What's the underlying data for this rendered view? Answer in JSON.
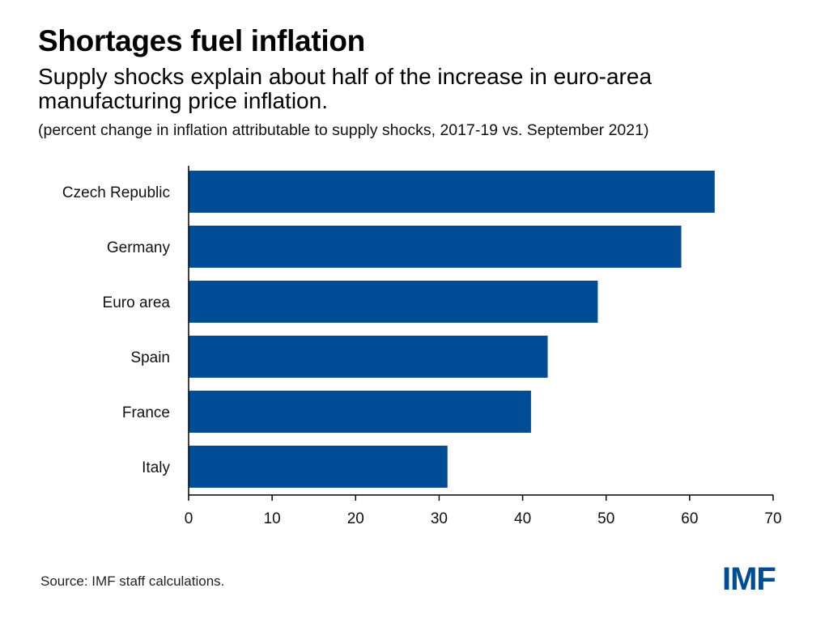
{
  "header": {
    "title": "Shortages fuel inflation",
    "subtitle": "Supply shocks explain about half of the increase in euro-area manufacturing price inflation.",
    "note": "(percent change in inflation attributable to supply shocks, 2017-19 vs. September 2021)"
  },
  "footer": {
    "source": "Source: IMF staff calculations.",
    "logo_text": "IMF"
  },
  "colors": {
    "bar": "#004c97",
    "logo": "#004c97",
    "axis": "#000000"
  },
  "chart_data": {
    "type": "bar",
    "orientation": "horizontal",
    "categories": [
      "Czech Republic",
      "Germany",
      "Euro area",
      "Spain",
      "France",
      "Italy"
    ],
    "values": [
      63,
      59,
      49,
      43,
      41,
      31
    ],
    "xlim": [
      0,
      70
    ],
    "xticks": [
      0,
      10,
      20,
      30,
      40,
      50,
      60,
      70
    ],
    "grid": false,
    "legend": "none"
  }
}
